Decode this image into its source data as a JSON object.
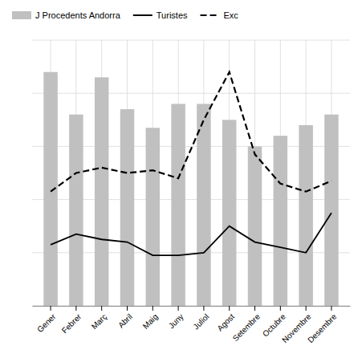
{
  "chart_data": {
    "type": "bar",
    "categories": [
      "Gener",
      "Febrer",
      "Març",
      "Abril",
      "Maig",
      "Juny",
      "Juliol",
      "Agost",
      "Setembre",
      "Octubre",
      "Novembre",
      "Desembre"
    ],
    "series": [
      {
        "name": "J Procedents Andorra",
        "type": "bar",
        "color": "#c0c0c0",
        "values": [
          88,
          72,
          86,
          74,
          67,
          76,
          76,
          70,
          60,
          64,
          68,
          72
        ]
      },
      {
        "name": "Turistes",
        "type": "line",
        "color": "#000000",
        "line_style": "solid",
        "values": [
          23,
          27,
          25,
          24,
          19,
          19,
          20,
          30,
          24,
          22,
          20,
          35
        ]
      },
      {
        "name": "Exc",
        "type": "line",
        "color": "#000000",
        "line_style": "dashed",
        "values": [
          43,
          50,
          52,
          50,
          51,
          48,
          70,
          88,
          57,
          46,
          43,
          47
        ]
      }
    ],
    "ylim": [
      0,
      100
    ],
    "yticks": [
      0,
      20,
      40,
      60,
      80,
      100
    ],
    "grid": true,
    "legend": "top",
    "tick_labels": "x"
  }
}
